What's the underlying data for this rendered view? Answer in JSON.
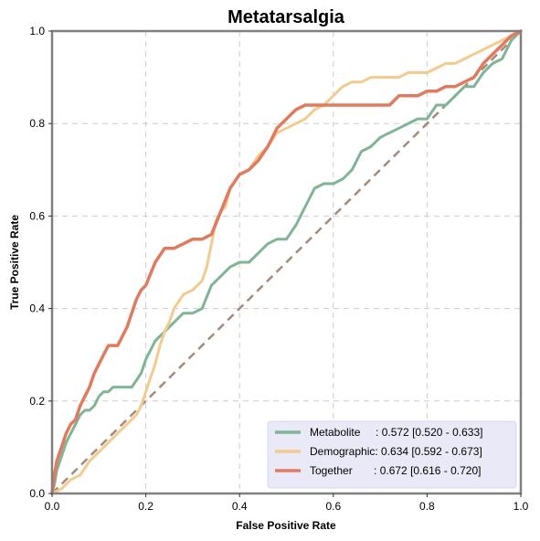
{
  "chart_data": {
    "type": "line",
    "title": "Metatarsalgia",
    "xlabel": "False Positive Rate",
    "ylabel": "True Positive Rate",
    "xlim": [
      0,
      1
    ],
    "ylim": [
      0,
      1
    ],
    "xticks": [
      "0.0",
      "0.2",
      "0.4",
      "0.6",
      "0.8",
      "1.0"
    ],
    "yticks": [
      "0.0",
      "0.2",
      "0.4",
      "0.6",
      "0.8",
      "1.0"
    ],
    "grid": true,
    "legend_position": "bottom-right",
    "diagonal": {
      "from": [
        0,
        0
      ],
      "to": [
        1,
        1
      ],
      "color": "#a58a7d",
      "style": "dashed"
    },
    "series": [
      {
        "name": "Metabolite",
        "legend_label": "Metabolite     : 0.572 [0.520 - 0.633]",
        "color": "#7fb595",
        "x": [
          0,
          0.005,
          0.01,
          0.02,
          0.03,
          0.04,
          0.05,
          0.06,
          0.07,
          0.08,
          0.09,
          0.1,
          0.11,
          0.12,
          0.13,
          0.15,
          0.17,
          0.19,
          0.2,
          0.22,
          0.24,
          0.26,
          0.28,
          0.3,
          0.32,
          0.34,
          0.36,
          0.38,
          0.4,
          0.42,
          0.44,
          0.46,
          0.48,
          0.5,
          0.52,
          0.54,
          0.56,
          0.58,
          0.6,
          0.62,
          0.64,
          0.66,
          0.68,
          0.7,
          0.72,
          0.74,
          0.76,
          0.78,
          0.8,
          0.82,
          0.84,
          0.86,
          0.88,
          0.9,
          0.92,
          0.94,
          0.96,
          0.98,
          1.0
        ],
        "y": [
          0,
          0.02,
          0.05,
          0.08,
          0.11,
          0.13,
          0.15,
          0.17,
          0.18,
          0.18,
          0.19,
          0.21,
          0.22,
          0.22,
          0.23,
          0.23,
          0.23,
          0.26,
          0.29,
          0.33,
          0.35,
          0.37,
          0.39,
          0.39,
          0.4,
          0.45,
          0.47,
          0.49,
          0.5,
          0.5,
          0.52,
          0.54,
          0.55,
          0.55,
          0.58,
          0.62,
          0.66,
          0.67,
          0.67,
          0.68,
          0.7,
          0.74,
          0.75,
          0.77,
          0.78,
          0.79,
          0.8,
          0.81,
          0.81,
          0.84,
          0.84,
          0.86,
          0.88,
          0.88,
          0.91,
          0.93,
          0.94,
          0.98,
          1.0
        ]
      },
      {
        "name": "Demographic",
        "legend_label": "Demographic: 0.634 [0.592 - 0.673]",
        "color": "#f2cb8f",
        "x": [
          0,
          0.02,
          0.04,
          0.06,
          0.08,
          0.1,
          0.12,
          0.14,
          0.16,
          0.18,
          0.19,
          0.2,
          0.21,
          0.22,
          0.23,
          0.24,
          0.25,
          0.26,
          0.28,
          0.3,
          0.32,
          0.33,
          0.34,
          0.35,
          0.36,
          0.37,
          0.38,
          0.4,
          0.42,
          0.44,
          0.46,
          0.48,
          0.5,
          0.52,
          0.54,
          0.56,
          0.58,
          0.6,
          0.62,
          0.64,
          0.66,
          0.68,
          0.7,
          0.72,
          0.74,
          0.76,
          0.78,
          0.8,
          0.82,
          0.84,
          0.86,
          0.88,
          0.9,
          0.92,
          0.94,
          0.96,
          0.98,
          1.0
        ],
        "y": [
          0,
          0.01,
          0.03,
          0.04,
          0.07,
          0.09,
          0.11,
          0.13,
          0.15,
          0.17,
          0.19,
          0.22,
          0.25,
          0.28,
          0.32,
          0.35,
          0.37,
          0.4,
          0.43,
          0.44,
          0.46,
          0.49,
          0.54,
          0.59,
          0.61,
          0.62,
          0.66,
          0.69,
          0.7,
          0.73,
          0.75,
          0.78,
          0.79,
          0.8,
          0.81,
          0.83,
          0.84,
          0.86,
          0.88,
          0.89,
          0.89,
          0.9,
          0.9,
          0.9,
          0.9,
          0.91,
          0.91,
          0.91,
          0.92,
          0.93,
          0.93,
          0.94,
          0.95,
          0.96,
          0.97,
          0.98,
          0.99,
          1.0
        ]
      },
      {
        "name": "Together",
        "legend_label": "Together       : 0.672 [0.616 - 0.720]",
        "color": "#e07b5f",
        "x": [
          0,
          0.005,
          0.01,
          0.02,
          0.03,
          0.04,
          0.05,
          0.06,
          0.07,
          0.08,
          0.09,
          0.1,
          0.11,
          0.12,
          0.14,
          0.16,
          0.18,
          0.19,
          0.2,
          0.22,
          0.24,
          0.26,
          0.28,
          0.3,
          0.32,
          0.34,
          0.36,
          0.38,
          0.4,
          0.42,
          0.44,
          0.46,
          0.48,
          0.5,
          0.52,
          0.54,
          0.56,
          0.58,
          0.6,
          0.62,
          0.64,
          0.66,
          0.68,
          0.7,
          0.72,
          0.74,
          0.76,
          0.78,
          0.8,
          0.82,
          0.84,
          0.86,
          0.88,
          0.9,
          0.92,
          0.94,
          0.96,
          0.98,
          1.0
        ],
        "y": [
          0,
          0.04,
          0.07,
          0.1,
          0.13,
          0.15,
          0.16,
          0.19,
          0.21,
          0.23,
          0.26,
          0.28,
          0.3,
          0.32,
          0.32,
          0.36,
          0.42,
          0.44,
          0.45,
          0.5,
          0.53,
          0.53,
          0.54,
          0.55,
          0.55,
          0.56,
          0.61,
          0.66,
          0.69,
          0.7,
          0.72,
          0.75,
          0.79,
          0.81,
          0.83,
          0.84,
          0.84,
          0.84,
          0.84,
          0.84,
          0.84,
          0.84,
          0.84,
          0.84,
          0.84,
          0.86,
          0.86,
          0.86,
          0.87,
          0.87,
          0.88,
          0.88,
          0.89,
          0.9,
          0.93,
          0.95,
          0.97,
          0.99,
          1.0
        ]
      }
    ]
  }
}
